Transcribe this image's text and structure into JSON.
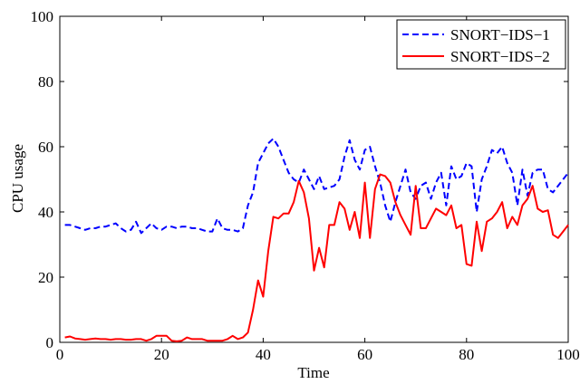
{
  "chart_data": {
    "type": "line",
    "xlabel": "Time",
    "ylabel": "CPU usage",
    "xlim": [
      0,
      100
    ],
    "ylim": [
      0,
      100
    ],
    "xticks": [
      0,
      20,
      40,
      60,
      80,
      100
    ],
    "yticks": [
      0,
      20,
      40,
      60,
      80,
      100
    ],
    "grid": false,
    "legend_position": "top-right",
    "x": [
      1,
      2,
      3,
      4,
      5,
      6,
      7,
      8,
      9,
      10,
      11,
      12,
      13,
      14,
      15,
      16,
      17,
      18,
      19,
      20,
      21,
      22,
      23,
      24,
      25,
      26,
      27,
      28,
      29,
      30,
      31,
      32,
      33,
      34,
      35,
      36,
      37,
      38,
      39,
      40,
      41,
      42,
      43,
      44,
      45,
      46,
      47,
      48,
      49,
      50,
      51,
      52,
      53,
      54,
      55,
      56,
      57,
      58,
      59,
      60,
      61,
      62,
      63,
      64,
      65,
      66,
      67,
      68,
      69,
      70,
      71,
      72,
      73,
      74,
      75,
      76,
      77,
      78,
      79,
      80,
      81,
      82,
      83,
      84,
      85,
      86,
      87,
      88,
      89,
      90,
      91,
      92,
      93,
      94,
      95,
      96,
      97,
      98,
      99,
      100
    ],
    "series": [
      {
        "name": "SNORT−IDS−1",
        "color": "#0000ff",
        "style": "dashed",
        "values": [
          36,
          36,
          35.5,
          35,
          34.5,
          35,
          35,
          35.5,
          35.5,
          36,
          36.5,
          35,
          34,
          34.5,
          37,
          33.5,
          35,
          36.5,
          35,
          34.5,
          35.5,
          35.5,
          35,
          35.5,
          35.5,
          35,
          35,
          34.5,
          34,
          34,
          38,
          35,
          34.5,
          34.5,
          34,
          35,
          42,
          46,
          55,
          58,
          61,
          62.5,
          60,
          56,
          52,
          50,
          49,
          53,
          50,
          47,
          51,
          47,
          47.5,
          48,
          50,
          57,
          62,
          56,
          53,
          59,
          60,
          54,
          49,
          42,
          37,
          43,
          48,
          53,
          46,
          44,
          48,
          49,
          44,
          49,
          52,
          42,
          54,
          50,
          51,
          55,
          54,
          40,
          50,
          54,
          59,
          58,
          60,
          55,
          52,
          42,
          53,
          45,
          52,
          53,
          53,
          47,
          46,
          48,
          50,
          52
        ]
      },
      {
        "name": "SNORT−IDS−2",
        "color": "#ff0000",
        "style": "solid",
        "values": [
          1.5,
          1.8,
          1.2,
          1,
          0.8,
          1,
          1.2,
          1,
          1,
          0.8,
          1,
          1,
          0.8,
          0.8,
          1,
          1,
          0.5,
          1,
          2,
          2,
          2,
          0.5,
          0.3,
          0.5,
          1.5,
          1,
          1,
          1,
          0.5,
          0.5,
          0.5,
          0.5,
          1,
          2,
          1,
          1.5,
          3,
          10,
          19,
          14,
          28,
          38.5,
          38,
          39.5,
          39.5,
          43,
          49.5,
          46,
          38,
          22,
          29,
          23,
          36,
          36,
          43,
          41,
          34.5,
          40,
          32,
          49,
          32,
          47,
          51.5,
          51,
          49,
          43,
          39,
          36,
          33,
          48,
          35,
          35,
          38,
          41,
          40,
          39,
          42,
          35,
          36,
          24,
          23.5,
          37,
          28,
          37,
          38,
          40,
          43,
          35,
          38.5,
          36,
          42,
          44,
          48,
          41,
          40,
          40.5,
          33,
          32,
          34,
          36
        ]
      }
    ]
  }
}
